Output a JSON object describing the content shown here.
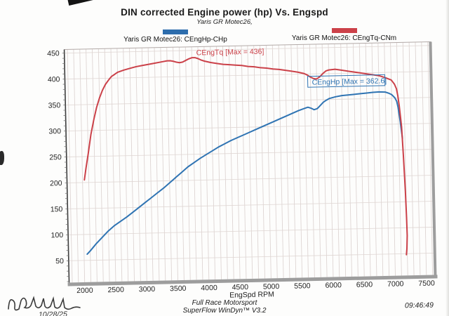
{
  "header": {
    "title": "DIN corrected Engine power (hp) Vs. Engspd",
    "subtitle": "Yaris GR Motec26,"
  },
  "legend": [
    {
      "label": "Yaris GR Motec26: CEngHp-CHp",
      "color": "#2d6dad"
    },
    {
      "label": "Yaris GR Motec26: CEngTq-CNm",
      "color": "#cc4149"
    }
  ],
  "annotations": {
    "torque_max_label": "CEngTq [Max = 436]",
    "power_max_label": "CEngHp [Max = 362.6]"
  },
  "footer": {
    "line1": "Full Race Motorsport",
    "line2": "SuperFlow WinDyn™ V3.2",
    "date": "10/28/25",
    "time": "09:46:49"
  },
  "chart_data": {
    "type": "line",
    "title": "DIN corrected Engine power (hp) Vs. Engspd",
    "subtitle": "Yaris GR Motec26,",
    "xlabel": "EngSpd RPM",
    "ylabel": "",
    "xlim": [
      1750,
      7620
    ],
    "ylim": [
      8,
      457
    ],
    "x_ticks": [
      2000,
      2500,
      3000,
      3500,
      4000,
      4500,
      5000,
      5500,
      6000,
      6500,
      7000,
      7500
    ],
    "y_ticks": [
      50,
      100,
      150,
      200,
      250,
      300,
      350,
      400,
      450
    ],
    "grid": {
      "x_minor_step": 100,
      "y_major_step": 50,
      "y_tick_minor_step": 10,
      "grid_on": true
    },
    "legend_position": "top",
    "series": [
      {
        "name": "Yaris GR Motec26: CEngHp-CHp",
        "color": "#2f74b3",
        "max": 362.6,
        "points": [
          [
            2050,
            62
          ],
          [
            2100,
            68
          ],
          [
            2150,
            75
          ],
          [
            2200,
            82
          ],
          [
            2300,
            94
          ],
          [
            2400,
            106
          ],
          [
            2500,
            116
          ],
          [
            2600,
            124
          ],
          [
            2700,
            132
          ],
          [
            2800,
            141
          ],
          [
            2900,
            150
          ],
          [
            3000,
            159
          ],
          [
            3100,
            168
          ],
          [
            3200,
            177
          ],
          [
            3300,
            186
          ],
          [
            3400,
            196
          ],
          [
            3500,
            206
          ],
          [
            3600,
            216
          ],
          [
            3700,
            226
          ],
          [
            3800,
            234
          ],
          [
            3900,
            242
          ],
          [
            4000,
            249
          ],
          [
            4100,
            256
          ],
          [
            4200,
            263
          ],
          [
            4300,
            269
          ],
          [
            4400,
            275
          ],
          [
            4500,
            280
          ],
          [
            4600,
            285
          ],
          [
            4700,
            290
          ],
          [
            4800,
            295
          ],
          [
            4900,
            300
          ],
          [
            5000,
            305
          ],
          [
            5100,
            310
          ],
          [
            5200,
            315
          ],
          [
            5300,
            320
          ],
          [
            5400,
            325
          ],
          [
            5500,
            330
          ],
          [
            5600,
            334
          ],
          [
            5650,
            336
          ],
          [
            5700,
            334
          ],
          [
            5750,
            331
          ],
          [
            5800,
            333
          ],
          [
            5850,
            339
          ],
          [
            5900,
            345
          ],
          [
            5950,
            349
          ],
          [
            6000,
            352
          ],
          [
            6100,
            355
          ],
          [
            6200,
            357
          ],
          [
            6300,
            358
          ],
          [
            6400,
            359
          ],
          [
            6500,
            360
          ],
          [
            6600,
            361
          ],
          [
            6700,
            362
          ],
          [
            6800,
            362.6
          ],
          [
            6900,
            362
          ],
          [
            6950,
            360
          ],
          [
            7000,
            357
          ],
          [
            7050,
            351
          ],
          [
            7080,
            344
          ],
          [
            7100,
            333
          ],
          [
            7130,
            305
          ],
          [
            7150,
            283
          ],
          [
            7160,
            272
          ]
        ]
      },
      {
        "name": "Yaris GR Motec26: CEngTq-CNm",
        "color": "#cb4149",
        "max": 436,
        "points": [
          [
            2030,
            205
          ],
          [
            2060,
            228
          ],
          [
            2100,
            255
          ],
          [
            2150,
            292
          ],
          [
            2200,
            320
          ],
          [
            2250,
            344
          ],
          [
            2300,
            362
          ],
          [
            2350,
            377
          ],
          [
            2400,
            388
          ],
          [
            2450,
            396
          ],
          [
            2500,
            403
          ],
          [
            2550,
            407
          ],
          [
            2600,
            411
          ],
          [
            2700,
            415
          ],
          [
            2800,
            418
          ],
          [
            2900,
            421
          ],
          [
            3000,
            423
          ],
          [
            3100,
            425
          ],
          [
            3200,
            427
          ],
          [
            3300,
            429
          ],
          [
            3400,
            431
          ],
          [
            3450,
            431
          ],
          [
            3500,
            430
          ],
          [
            3550,
            428
          ],
          [
            3600,
            427
          ],
          [
            3650,
            428
          ],
          [
            3700,
            431
          ],
          [
            3750,
            434
          ],
          [
            3800,
            436
          ],
          [
            3850,
            436
          ],
          [
            3900,
            434
          ],
          [
            3950,
            431
          ],
          [
            4000,
            429
          ],
          [
            4100,
            426
          ],
          [
            4200,
            424
          ],
          [
            4300,
            422
          ],
          [
            4400,
            421
          ],
          [
            4500,
            420
          ],
          [
            4600,
            419
          ],
          [
            4700,
            417
          ],
          [
            4800,
            416
          ],
          [
            4900,
            414
          ],
          [
            5000,
            413
          ],
          [
            5100,
            411
          ],
          [
            5200,
            410
          ],
          [
            5300,
            408
          ],
          [
            5400,
            406
          ],
          [
            5500,
            404
          ],
          [
            5600,
            401
          ],
          [
            5650,
            398
          ],
          [
            5700,
            394
          ],
          [
            5750,
            391
          ],
          [
            5800,
            390
          ],
          [
            5850,
            394
          ],
          [
            5900,
            400
          ],
          [
            5950,
            405
          ],
          [
            6000,
            407
          ],
          [
            6100,
            408
          ],
          [
            6200,
            406
          ],
          [
            6300,
            404
          ],
          [
            6400,
            402
          ],
          [
            6500,
            400
          ],
          [
            6600,
            398
          ],
          [
            6700,
            396
          ],
          [
            6800,
            394
          ],
          [
            6900,
            390
          ],
          [
            7000,
            385
          ],
          [
            7050,
            377
          ],
          [
            7080,
            368
          ],
          [
            7100,
            355
          ],
          [
            7120,
            335
          ],
          [
            7150,
            295
          ],
          [
            7170,
            240
          ],
          [
            7190,
            170
          ],
          [
            7200,
            120
          ],
          [
            7205,
            85
          ],
          [
            7195,
            60
          ],
          [
            7185,
            48
          ]
        ]
      }
    ]
  }
}
